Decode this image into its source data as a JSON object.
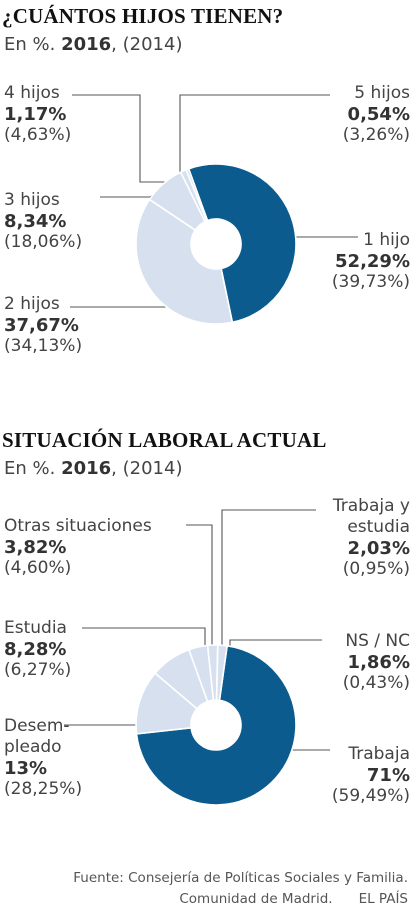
{
  "chart_data": [
    {
      "type": "pie",
      "title": "¿CUÁNTOS HIJOS TIENEN?",
      "subtitle": {
        "prefix": "En %.",
        "year": "2016",
        "prev": ", (2014)"
      },
      "categories": [
        "1 hijo",
        "2 hijos",
        "3 hijos",
        "4 hijos",
        "5 hijos"
      ],
      "series": [
        {
          "name": "2016",
          "values": [
            52.29,
            37.67,
            8.34,
            1.17,
            0.54
          ]
        },
        {
          "name": "2014",
          "values": [
            39.73,
            34.13,
            18.06,
            4.63,
            3.26
          ]
        }
      ],
      "labels": {
        "1 hijo": {
          "pct": "52,29%",
          "prev": "(39,73%)"
        },
        "2 hijos": {
          "pct": "37,67%",
          "prev": "(34,13%)"
        },
        "3 hijos": {
          "pct": "8,34%",
          "prev": "(18,06%)"
        },
        "4 hijos": {
          "pct": "1,17%",
          "prev": "(4,63%)"
        },
        "5 hijos": {
          "pct": "0,54%",
          "prev": "(3,26%)"
        }
      },
      "colors": {
        "1 hijo": "#0c5b8e",
        "2 hijos": "#d6e0ee",
        "3 hijos": "#d6e0ee",
        "4 hijos": "#d6e0ee",
        "5 hijos": "#d6e0ee"
      }
    },
    {
      "type": "pie",
      "title": "SITUACIÓN LABORAL ACTUAL",
      "subtitle": {
        "prefix": "En %.",
        "year": "2016",
        "prev": ", (2014)"
      },
      "categories": [
        "Trabaja",
        "Desempleado",
        "Estudia",
        "Otras situaciones",
        "Trabaja y estudia",
        "NS / NC"
      ],
      "series": [
        {
          "name": "2016",
          "values": [
            71,
            13,
            8.28,
            3.82,
            2.03,
            1.86
          ]
        },
        {
          "name": "2014",
          "values": [
            59.49,
            28.25,
            6.27,
            4.6,
            0.95,
            0.43
          ]
        }
      ],
      "labels": {
        "Trabaja": {
          "lines": [
            "Trabaja"
          ],
          "pct": "71%",
          "prev": "(59,49%)"
        },
        "Desempleado": {
          "lines": [
            "Desem-",
            "pleado"
          ],
          "pct": "13%",
          "prev": "(28,25%)"
        },
        "Estudia": {
          "lines": [
            "Estudia"
          ],
          "pct": "8,28%",
          "prev": "(6,27%)"
        },
        "Otras situaciones": {
          "lines": [
            "Otras situaciones"
          ],
          "pct": "3,82%",
          "prev": "(4,60%)"
        },
        "Trabaja y estudia": {
          "lines": [
            "Trabaja y",
            "estudia"
          ],
          "pct": "2,03%",
          "prev": "(0,95%)"
        },
        "NS / NC": {
          "lines": [
            "NS / NC"
          ],
          "pct": "1,86%",
          "prev": "(0,43%)"
        }
      },
      "colors": {
        "Trabaja": "#0c5b8e",
        "Desempleado": "#d6e0ee",
        "Estudia": "#d6e0ee",
        "Otras situaciones": "#d6e0ee",
        "Trabaja y estudia": "#d6e0ee",
        "NS / NC": "#d6e0ee"
      }
    }
  ],
  "footer": {
    "line1": "Fuente: Consejería de Políticas Sociales y Familia.",
    "line2": "Comunidad de Madrid.",
    "brand": "EL PAÍS"
  }
}
